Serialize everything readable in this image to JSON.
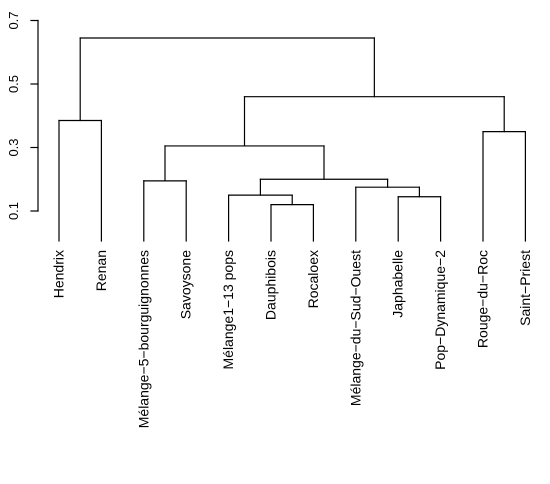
{
  "chart_data": {
    "type": "dendrogram",
    "title": "",
    "xlabel": "",
    "ylabel": "",
    "ylim": [
      0.03,
      0.75
    ],
    "yticks": [
      0.1,
      0.3,
      0.5,
      0.7
    ],
    "ytick_labels": [
      "0.1",
      "0.3",
      "0.5",
      "0.7"
    ],
    "leaves": [
      "Hendrix",
      "Renan",
      "Mélange−5−bourguignonnes",
      "Savoysone",
      "Mélange1−13 pops",
      "Dauphibois",
      "Rocaloex",
      "Mélange−du−Sud−Ouest",
      "Japhabelle",
      "Pop−Dynamique−2",
      "Rouge−du−Roc",
      "Saint−Priest"
    ],
    "merges": [
      {
        "children": [
          "leaf:5",
          "leaf:6"
        ],
        "height": 0.12
      },
      {
        "children": [
          "leaf:8",
          "leaf:9"
        ],
        "height": 0.145
      },
      {
        "children": [
          "leaf:4",
          "node:0"
        ],
        "height": 0.15
      },
      {
        "children": [
          "leaf:7",
          "node:1"
        ],
        "height": 0.175
      },
      {
        "children": [
          "leaf:2",
          "leaf:3"
        ],
        "height": 0.195
      },
      {
        "children": [
          "node:2",
          "node:3"
        ],
        "height": 0.2
      },
      {
        "children": [
          "node:4",
          "node:5"
        ],
        "height": 0.305
      },
      {
        "children": [
          "leaf:10",
          "leaf:11"
        ],
        "height": 0.35
      },
      {
        "children": [
          "leaf:0",
          "leaf:1"
        ],
        "height": 0.385
      },
      {
        "children": [
          "node:6",
          "node:7"
        ],
        "height": 0.46
      },
      {
        "children": [
          "node:8",
          "node:9"
        ],
        "height": 0.645
      }
    ]
  }
}
